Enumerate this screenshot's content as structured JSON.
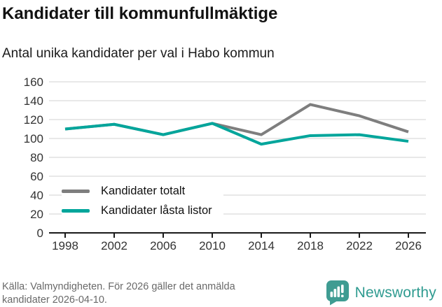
{
  "header": {
    "title": "Kandidater till kommunfullmäktige",
    "subtitle": "Antal unika kandidater per val i Habo kommun"
  },
  "chart_data": {
    "type": "line",
    "categories": [
      "1998",
      "2002",
      "2006",
      "2010",
      "2014",
      "2018",
      "2022",
      "2026"
    ],
    "series": [
      {
        "name": "Kandidater totalt",
        "color": "#7e7e7e",
        "values": [
          110,
          115,
          104,
          116,
          104,
          136,
          124,
          107
        ]
      },
      {
        "name": "Kandidater låsta listor",
        "color": "#00a59b",
        "values": [
          110,
          115,
          104,
          116,
          94,
          103,
          104,
          97
        ]
      }
    ],
    "title": "Kandidater till kommunfullmäktige",
    "subtitle": "Antal unika kandidater per val i Habo kommun",
    "xlabel": "",
    "ylabel": "",
    "ylim": [
      0,
      160
    ],
    "ytick_step": 20,
    "grid": "horizontal",
    "gridline_color": "#d9d9d9",
    "axis_color": "#1a1a1a",
    "tick_label_color": "#333333",
    "legend_position": "inside-left"
  },
  "footer": {
    "source_line1": "Källa: Valmyndigheten. För 2026 gäller det anmälda",
    "source_line2": "kandidater 2026-04-10.",
    "brand": "Newsworthy",
    "brand_color": "#2f9b90",
    "brand_icon": "bar-chart-speech-bubble"
  }
}
